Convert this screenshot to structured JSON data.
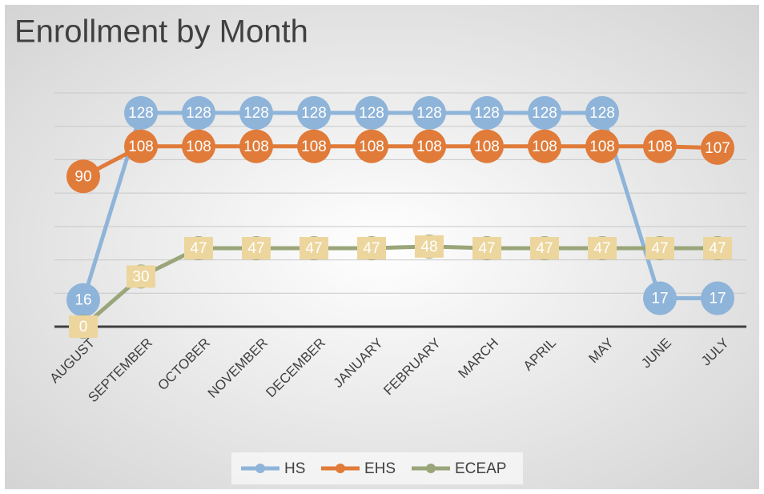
{
  "chart_data": {
    "type": "line",
    "title": "Enrollment by Month",
    "categories": [
      "AUGUST",
      "SEPTEMBER",
      "OCTOBER",
      "NOVEMBER",
      "DECEMBER",
      "JANUARY",
      "FEBRUARY",
      "MARCH",
      "APRIL",
      "MAY",
      "JUNE",
      "JULY"
    ],
    "series": [
      {
        "name": "HS",
        "color": "#8fb4d9",
        "label_fill": "#8fb4d9",
        "values": [
          16,
          128,
          128,
          128,
          128,
          128,
          128,
          128,
          128,
          128,
          17,
          17
        ]
      },
      {
        "name": "EHS",
        "color": "#e07b39",
        "label_fill": "#e07b39",
        "values": [
          90,
          108,
          108,
          108,
          108,
          108,
          108,
          108,
          108,
          108,
          108,
          107
        ]
      },
      {
        "name": "ECEAP",
        "color": "#9aa67a",
        "label_fill": "#ecd69e",
        "values": [
          0,
          30,
          47,
          47,
          47,
          47,
          48,
          47,
          47,
          47,
          47,
          47
        ]
      }
    ],
    "ylim": [
      0,
      140
    ],
    "yticks": [
      0,
      20,
      40,
      60,
      80,
      100,
      120,
      140
    ],
    "grid": true,
    "legend": "bottom"
  }
}
